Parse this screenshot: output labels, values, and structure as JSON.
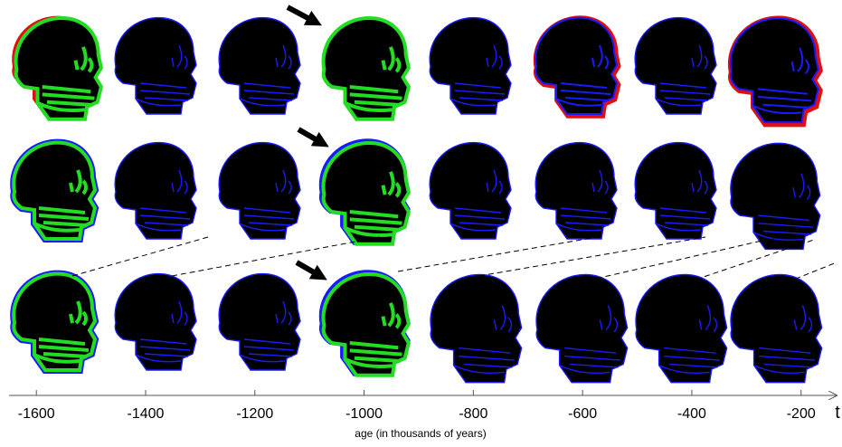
{
  "axis": {
    "xlim": [
      -1650,
      -135
    ],
    "ticks": [
      -1600,
      -1400,
      -1200,
      -1000,
      -800,
      -600,
      -400,
      -200
    ],
    "end_label": "t",
    "label": "age (in thousands of years)"
  }
}
